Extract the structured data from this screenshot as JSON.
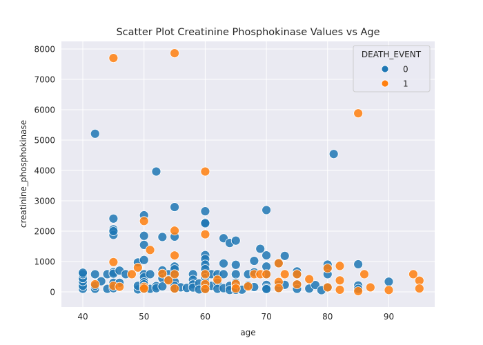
{
  "chart_data": {
    "type": "scatter",
    "title": "Scatter Plot Creatinine Phosphokinase Values vs Age",
    "xlabel": "age",
    "ylabel": "creatinine_phosphokinase",
    "xlim": [
      36.5,
      97.5
    ],
    "ylim": [
      -500,
      8250
    ],
    "xticks": [
      40,
      50,
      60,
      70,
      80,
      90
    ],
    "yticks": [
      0,
      1000,
      2000,
      3000,
      4000,
      5000,
      6000,
      7000,
      8000
    ],
    "grid": true,
    "legend": {
      "title": "DEATH_EVENT",
      "placement": "top-right"
    },
    "series": [
      {
        "name": "0",
        "color": "#1f77b4",
        "points": [
          [
            40,
            100
          ],
          [
            40,
            200
          ],
          [
            40,
            350
          ],
          [
            40,
            450
          ],
          [
            40,
            580
          ],
          [
            40,
            630
          ],
          [
            42,
            5209
          ],
          [
            42,
            580
          ],
          [
            42,
            102
          ],
          [
            42,
            200
          ],
          [
            43,
            350
          ],
          [
            44,
            582
          ],
          [
            44,
            100
          ],
          [
            45,
            2413
          ],
          [
            45,
            2060
          ],
          [
            45,
            1876
          ],
          [
            45,
            2000
          ],
          [
            45,
            650
          ],
          [
            45,
            600
          ],
          [
            45,
            300
          ],
          [
            45,
            120
          ],
          [
            46,
            700
          ],
          [
            46,
            300
          ],
          [
            47,
            582
          ],
          [
            49,
            970
          ],
          [
            49,
            80
          ],
          [
            49,
            200
          ],
          [
            50,
            2522
          ],
          [
            50,
            1846
          ],
          [
            50,
            1548
          ],
          [
            50,
            1051
          ],
          [
            50,
            582
          ],
          [
            50,
            480
          ],
          [
            50,
            320
          ],
          [
            50,
            250
          ],
          [
            50,
            160
          ],
          [
            50,
            100
          ],
          [
            51,
            582
          ],
          [
            51,
            100
          ],
          [
            52,
            3964
          ],
          [
            52,
            190
          ],
          [
            52,
            120
          ],
          [
            53,
            1808
          ],
          [
            53,
            707
          ],
          [
            53,
            582
          ],
          [
            53,
            446
          ],
          [
            53,
            180
          ],
          [
            54,
            582
          ],
          [
            54,
            400
          ],
          [
            55,
            2794
          ],
          [
            55,
            1820
          ],
          [
            55,
            835
          ],
          [
            55,
            748
          ],
          [
            55,
            582
          ],
          [
            55,
            336
          ],
          [
            55,
            200
          ],
          [
            55,
            100
          ],
          [
            56,
            150
          ],
          [
            57,
            130
          ],
          [
            58,
            582
          ],
          [
            58,
            400
          ],
          [
            58,
            246
          ],
          [
            58,
            144
          ],
          [
            59,
            280
          ],
          [
            59,
            80
          ],
          [
            60,
            2656
          ],
          [
            60,
            2281
          ],
          [
            60,
            2261
          ],
          [
            60,
            1211
          ],
          [
            60,
            1082
          ],
          [
            60,
            900
          ],
          [
            60,
            750
          ],
          [
            60,
            582
          ],
          [
            60,
            454
          ],
          [
            60,
            320
          ],
          [
            60,
            235
          ],
          [
            60,
            150
          ],
          [
            60,
            96
          ],
          [
            61,
            582
          ],
          [
            61,
            200
          ],
          [
            62,
            582
          ],
          [
            62,
            300
          ],
          [
            62,
            100
          ],
          [
            63,
            1767
          ],
          [
            63,
            936
          ],
          [
            63,
            582
          ],
          [
            63,
            122
          ],
          [
            64,
            1610
          ],
          [
            64,
            200
          ],
          [
            64,
            62
          ],
          [
            65,
            1688
          ],
          [
            65,
            892
          ],
          [
            65,
            582
          ],
          [
            65,
            305
          ],
          [
            65,
            160
          ],
          [
            65,
            68
          ],
          [
            66,
            72
          ],
          [
            67,
            213
          ],
          [
            67,
            582
          ],
          [
            68,
            1021
          ],
          [
            68,
            646
          ],
          [
            68,
            160
          ],
          [
            69,
            1419
          ],
          [
            70,
            2695
          ],
          [
            70,
            1202
          ],
          [
            70,
            835
          ],
          [
            70,
            582
          ],
          [
            70,
            232
          ],
          [
            70,
            125
          ],
          [
            70,
            92
          ],
          [
            72,
            943
          ],
          [
            72,
            233
          ],
          [
            72,
            110
          ],
          [
            73,
            1185
          ],
          [
            73,
            231
          ],
          [
            75,
            675
          ],
          [
            75,
            582
          ],
          [
            75,
            246
          ],
          [
            75,
            99
          ],
          [
            77,
            109
          ],
          [
            78,
            224
          ],
          [
            79,
            55
          ],
          [
            80,
            898
          ],
          [
            80,
            776
          ],
          [
            80,
            582
          ],
          [
            80,
            148
          ],
          [
            81,
            4540
          ],
          [
            85,
            910
          ],
          [
            85,
            212
          ],
          [
            85,
            102
          ],
          [
            90,
            337
          ]
        ]
      },
      {
        "name": "1",
        "color": "#ff7f0e",
        "points": [
          [
            42,
            250
          ],
          [
            45,
            7702
          ],
          [
            45,
            981
          ],
          [
            45,
            200
          ],
          [
            46,
            168
          ],
          [
            48,
            582
          ],
          [
            49,
            800
          ],
          [
            50,
            2334
          ],
          [
            50,
            168
          ],
          [
            50,
            110
          ],
          [
            51,
            1380
          ],
          [
            53,
            600
          ],
          [
            54,
            380
          ],
          [
            55,
            7861
          ],
          [
            55,
            2017
          ],
          [
            55,
            1199
          ],
          [
            55,
            582
          ],
          [
            55,
            109
          ],
          [
            60,
            3964
          ],
          [
            60,
            1896
          ],
          [
            60,
            582
          ],
          [
            60,
            260
          ],
          [
            60,
            96
          ],
          [
            62,
            400
          ],
          [
            65,
            263
          ],
          [
            65,
            113
          ],
          [
            67,
            180
          ],
          [
            68,
            582
          ],
          [
            69,
            582
          ],
          [
            70,
            582
          ],
          [
            72,
            943
          ],
          [
            72,
            328
          ],
          [
            72,
            127
          ],
          [
            73,
            582
          ],
          [
            75,
            582
          ],
          [
            75,
            246
          ],
          [
            77,
            418
          ],
          [
            80,
            148
          ],
          [
            80,
            776
          ],
          [
            82,
            855
          ],
          [
            82,
            379
          ],
          [
            82,
            70
          ],
          [
            85,
            5882
          ],
          [
            85,
            23
          ],
          [
            86,
            582
          ],
          [
            87,
            149
          ],
          [
            90,
            60
          ],
          [
            94,
            582
          ],
          [
            95,
            371
          ],
          [
            95,
            112
          ]
        ]
      }
    ]
  }
}
